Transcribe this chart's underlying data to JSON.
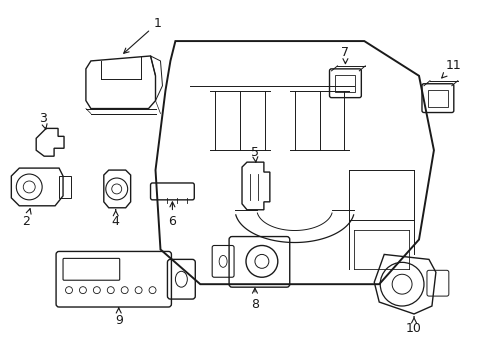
{
  "bg_color": "#ffffff",
  "line_color": "#1a1a1a",
  "font_size": 9,
  "lw": 1.0,
  "fig_w": 4.89,
  "fig_h": 3.6,
  "dpi": 100
}
